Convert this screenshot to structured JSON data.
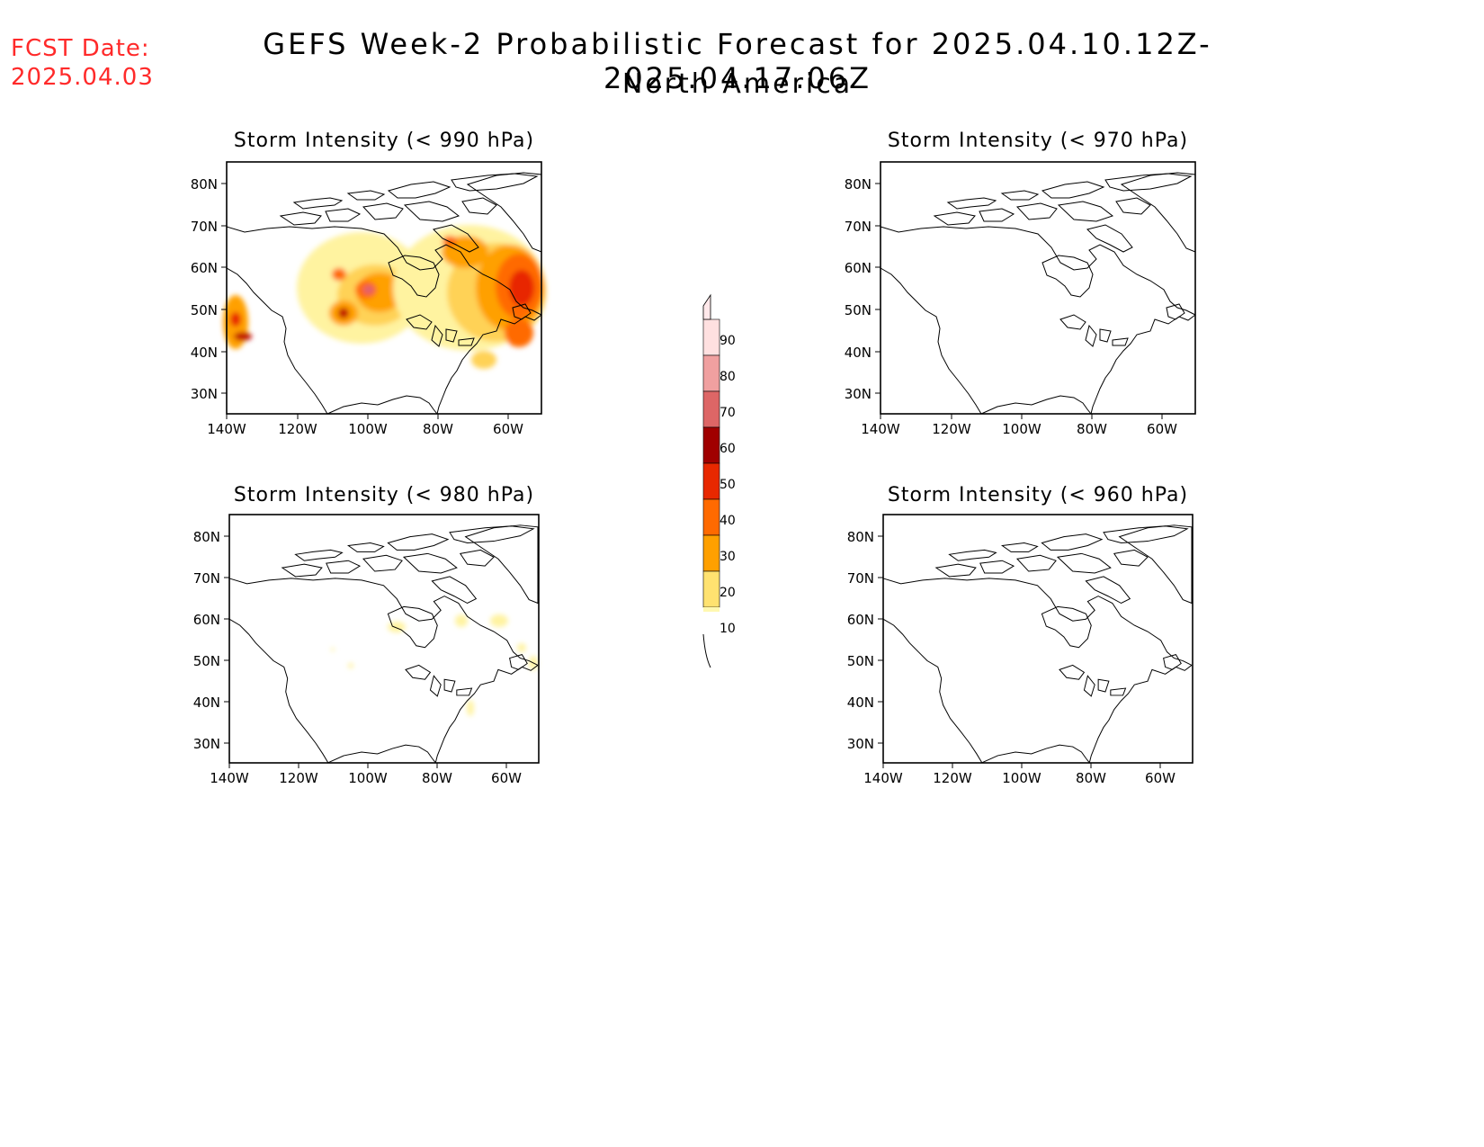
{
  "fcst": {
    "line1": "FCST Date:",
    "line2": "2025.04.03"
  },
  "title": "GEFS Week-2 Probabilistic Forecast for 2025.04.10.12Z-2025.04.17.06Z",
  "subtitle": "North America",
  "panels": [
    {
      "id": "p990",
      "title": "Storm Intensity (< 990 hPa)"
    },
    {
      "id": "p970",
      "title": "Storm Intensity (< 970 hPa)"
    },
    {
      "id": "p980",
      "title": "Storm Intensity (< 980 hPa)"
    },
    {
      "id": "p960",
      "title": "Storm Intensity (< 960 hPa)"
    }
  ],
  "lat_ticks": [
    "80N",
    "70N",
    "60N",
    "50N",
    "40N",
    "30N"
  ],
  "lon_ticks": [
    "140W",
    "120W",
    "100W",
    "80W",
    "60W"
  ],
  "colorbar": {
    "levels": [
      "10",
      "20",
      "30",
      "40",
      "50",
      "60",
      "70",
      "80",
      "90"
    ],
    "colors": [
      "#fff8b0",
      "#ffe270",
      "#ffa000",
      "#ff6a00",
      "#e82800",
      "#a00000",
      "#dd6666",
      "#f0a0a0",
      "#ffe0e0"
    ]
  },
  "chart_data": {
    "type": "map",
    "extent": {
      "lon": [
        -140,
        -51
      ],
      "lat": [
        25,
        85
      ]
    },
    "probability_shading": {
      "p990": [
        {
          "lon": -97.5,
          "lat": 51,
          "rx": 4,
          "ry": 3,
          "level": "60-90"
        },
        {
          "lon": -101,
          "lat": 49,
          "rx": 6,
          "ry": 5,
          "level": "40-60"
        },
        {
          "lon": -107,
          "lat": 56,
          "rx": 3,
          "ry": 3,
          "level": "40-60"
        },
        {
          "lon": -104,
          "lat": 50,
          "rx": 10,
          "ry": 9,
          "level": "20-40"
        },
        {
          "lon": -60,
          "lat": 55,
          "rx": 10,
          "ry": 8,
          "level": "40-60"
        },
        {
          "lon": -56,
          "lat": 51,
          "rx": 5,
          "ry": 5,
          "level": "50-60"
        },
        {
          "lon": -62,
          "lat": 45,
          "rx": 5,
          "ry": 4,
          "level": "40-50"
        },
        {
          "lon": -68,
          "lat": 60,
          "rx": 6,
          "ry": 4,
          "level": "30-40"
        },
        {
          "lon": -70,
          "lat": 52,
          "rx": 20,
          "ry": 13,
          "level": "10-30"
        },
        {
          "lon": -137,
          "lat": 47,
          "rx": 4,
          "ry": 5,
          "level": "30-60"
        },
        {
          "lon": -134,
          "lat": 44,
          "rx": 3,
          "ry": 2,
          "level": "60-90"
        }
      ],
      "p980": [
        {
          "lon": -90,
          "lat": 58,
          "rx": 2,
          "ry": 1.2,
          "level": "10-20"
        },
        {
          "lon": -74,
          "lat": 60,
          "rx": 1.5,
          "ry": 1.5,
          "level": "10-20"
        },
        {
          "lon": -63,
          "lat": 61,
          "rx": 2,
          "ry": 1.5,
          "level": "10-20"
        },
        {
          "lon": -70,
          "lat": 38,
          "rx": 1,
          "ry": 2,
          "level": "10-20"
        },
        {
          "lon": -55,
          "lat": 51,
          "rx": 1.2,
          "ry": 1.5,
          "level": "10-20"
        }
      ],
      "p970": [],
      "p960": []
    }
  }
}
